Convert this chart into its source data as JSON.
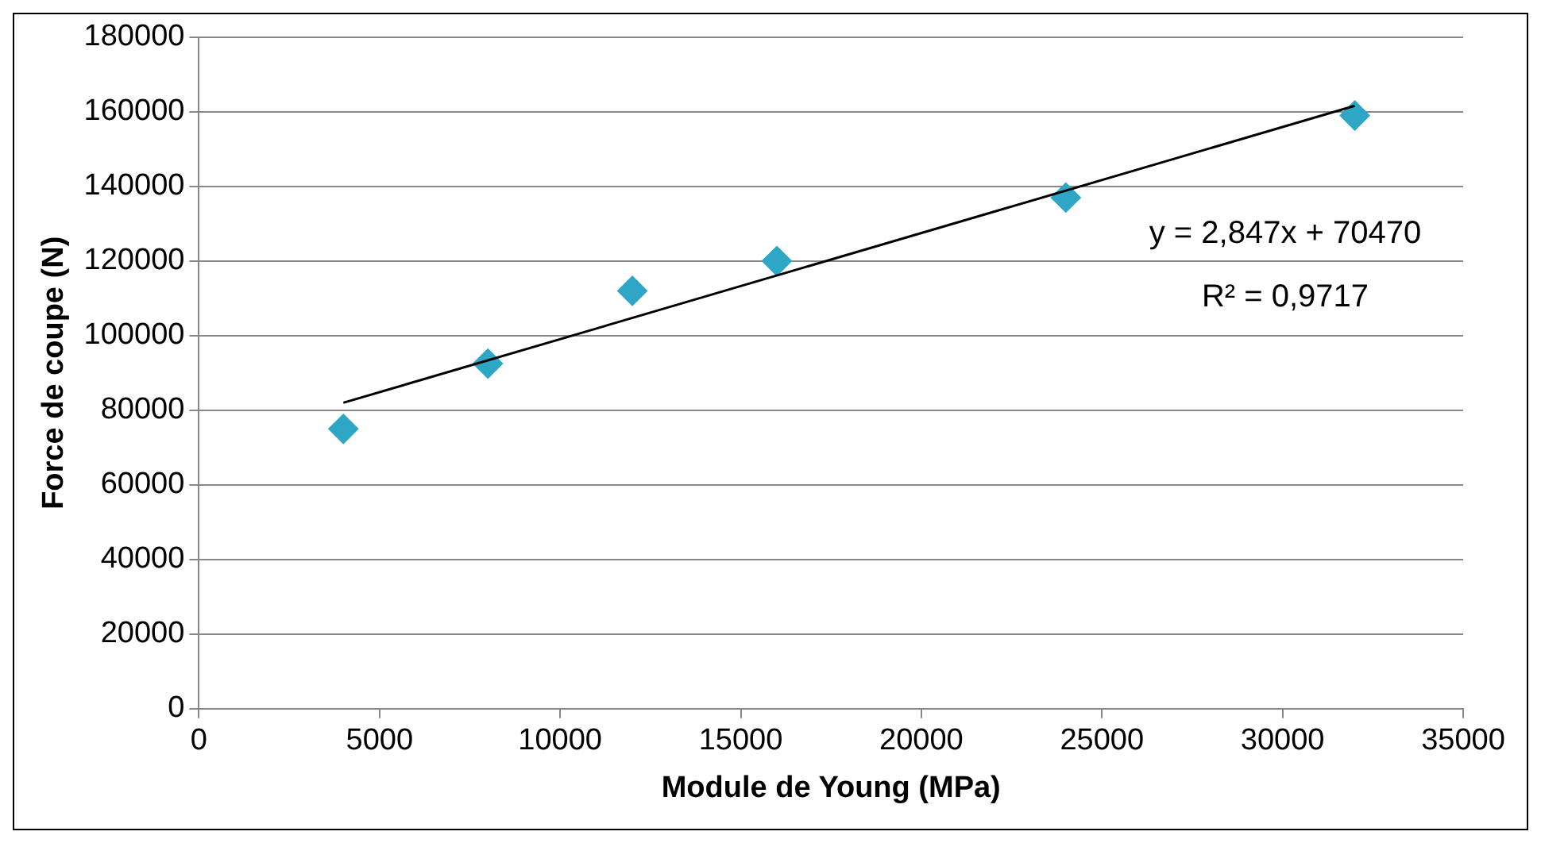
{
  "chart_data": {
    "type": "scatter",
    "xlabel": "Module de Young (MPa)",
    "ylabel": "Force de coupe (N)",
    "x": [
      4000,
      8000,
      12000,
      16000,
      24000,
      32000
    ],
    "series": [
      {
        "color": "#2ea6c6",
        "marker": "diamond",
        "values": [
          75000,
          92500,
          112000,
          120000,
          137000,
          159000
        ]
      },
      {
        "type": "line",
        "color": "#000000",
        "marker": "none",
        "x": [
          4000,
          32000
        ],
        "values": [
          82000,
          161600
        ]
      }
    ],
    "xlim": [
      0,
      35000
    ],
    "xticks": [
      0,
      5000,
      10000,
      15000,
      20000,
      25000,
      30000,
      35000
    ],
    "ylim": [
      0,
      180000
    ],
    "yticks": [
      0,
      20000,
      40000,
      60000,
      80000,
      100000,
      120000,
      140000,
      160000,
      180000
    ],
    "grid": "y",
    "legend": false,
    "annotations": [
      "y = 2,847x + 70470",
      "R² = 0,9717"
    ]
  }
}
